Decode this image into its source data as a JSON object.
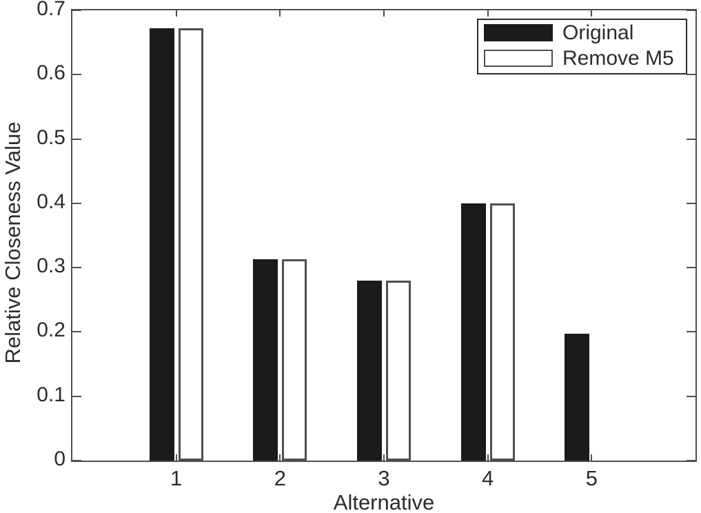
{
  "chart_data": {
    "type": "bar",
    "title": "",
    "xlabel": "Alternative",
    "ylabel": "Relative Closeness Value",
    "categories": [
      "1",
      "2",
      "3",
      "4",
      "5"
    ],
    "series": [
      {
        "name": "Original",
        "style": "filled",
        "fill": "#1b1b1b",
        "values": [
          0.672,
          0.313,
          0.28,
          0.4,
          0.197
        ]
      },
      {
        "name": "Remove M5",
        "style": "open",
        "fill": "#ffffff",
        "values": [
          0.672,
          0.313,
          0.28,
          0.4,
          0.0
        ]
      }
    ],
    "ylim": [
      0,
      0.7
    ],
    "yticks": [
      0,
      0.1,
      0.2,
      0.3,
      0.4,
      0.5,
      0.6,
      0.7
    ],
    "ytick_labels": [
      "0",
      "0.1",
      "0.2",
      "0.3",
      "0.4",
      "0.5",
      "0.6",
      "0.7"
    ],
    "grid": false,
    "legend_position": "top-right",
    "colors": {
      "bar_fill": "#1b1b1b",
      "bar_edge": "#4f4f4f",
      "axis": "#4f4f4f",
      "text": "#2c2c2c"
    }
  }
}
